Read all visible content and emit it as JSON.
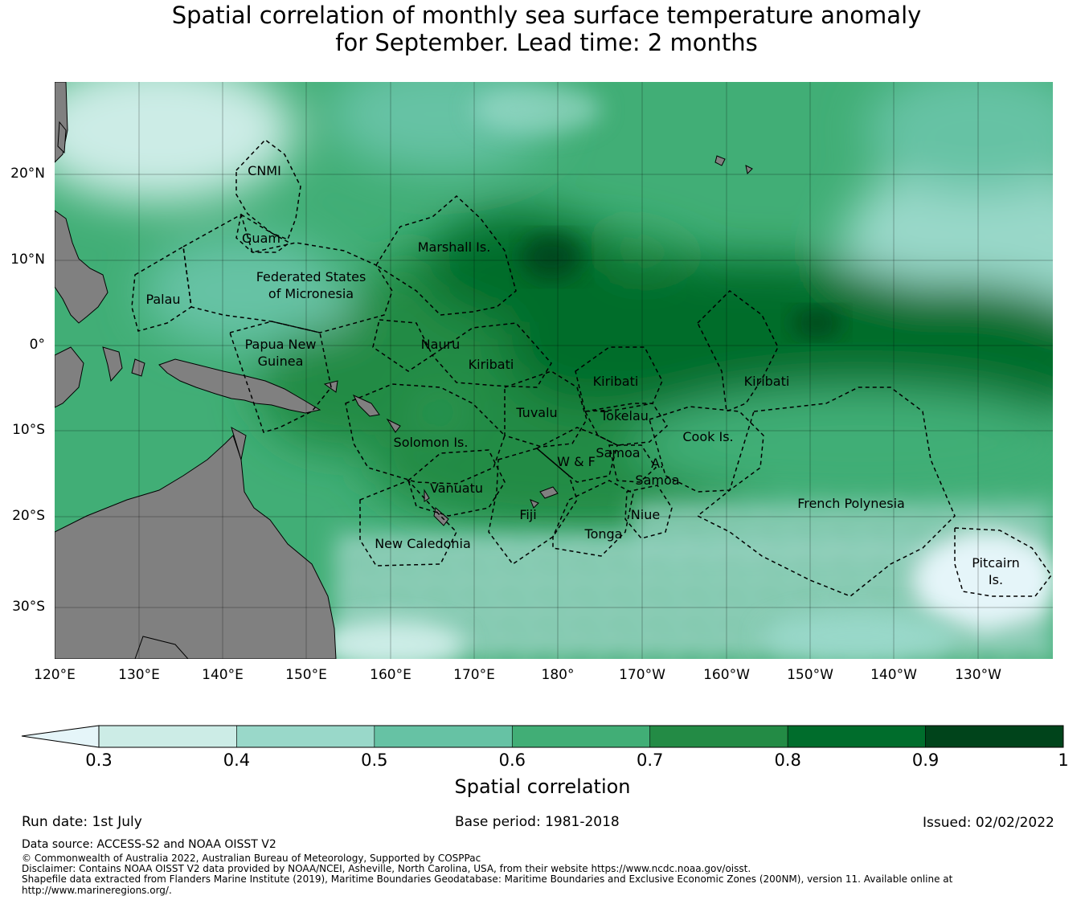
{
  "title_line1": "Spatial correlation of monthly sea surface temperature anomaly",
  "title_line2": "for September. Lead time: 2 months",
  "latitudes": [
    "20°N",
    "10°N",
    "0°",
    "10°S",
    "20°S",
    "30°S"
  ],
  "longitudes": [
    "120°E",
    "130°E",
    "140°E",
    "150°E",
    "160°E",
    "170°E",
    "180°",
    "170°W",
    "160°W",
    "150°W",
    "140°W",
    "130°W"
  ],
  "regions": [
    {
      "name": "CNMI"
    },
    {
      "name": "Guam"
    },
    {
      "name": "Marshall Is."
    },
    {
      "name": "Federated States"
    },
    {
      "name": "of Micronesia"
    },
    {
      "name": "Palau"
    },
    {
      "name": "Papua New"
    },
    {
      "name": "Guinea"
    },
    {
      "name": "Nauru"
    },
    {
      "name": "Kiribati"
    },
    {
      "name": "Kiribati"
    },
    {
      "name": "Kiribati"
    },
    {
      "name": "Tuvalu"
    },
    {
      "name": "Tokelau"
    },
    {
      "name": "Solomon Is."
    },
    {
      "name": "Samoa"
    },
    {
      "name": "W & F"
    },
    {
      "name": "A."
    },
    {
      "name": "Samoa"
    },
    {
      "name": "Cook Is."
    },
    {
      "name": "Vanuatu"
    },
    {
      "name": "Fiji"
    },
    {
      "name": "Niue"
    },
    {
      "name": "Tonga"
    },
    {
      "name": "New Caledonia"
    },
    {
      "name": "French Polynesia"
    },
    {
      "name": "Pitcairn"
    },
    {
      "name": "Is."
    }
  ],
  "colorbar": {
    "ticks": [
      "0.3",
      "0.4",
      "0.5",
      "0.6",
      "0.7",
      "0.8",
      "0.9",
      "1"
    ],
    "colors": [
      "#e5f5f9",
      "#ccece6",
      "#99d8c9",
      "#66c2a4",
      "#41ae76",
      "#238b45",
      "#006d2c",
      "#00441b"
    ],
    "label": "Spatial correlation"
  },
  "run_date": "Run date: 1st July",
  "base_period": "Base period: 1981-2018",
  "issued": "Issued: 02/02/2022",
  "footer": {
    "source": "Data source: ACCESS-S2 and NOAA OISST V2",
    "copyright": "© Commonwealth of Australia 2022, Australian Bureau of Meteorology, Supported by COSPPac",
    "disclaimer": "Disclaimer: Contains NOAA OISST V2 data provided by NOAA/NCEI, Asheville, North Carolina, USA, from their website https://www.ncdc.noaa.gov/oisst.",
    "shapefile1": "Shapefile data extracted from Flanders Marine Institute (2019), Maritime Boundaries Geodatabase: Maritime Boundaries and Exclusive Economic Zones (200NM), version 11. Available online at",
    "shapefile2": "http://www.marineregions.org/."
  }
}
